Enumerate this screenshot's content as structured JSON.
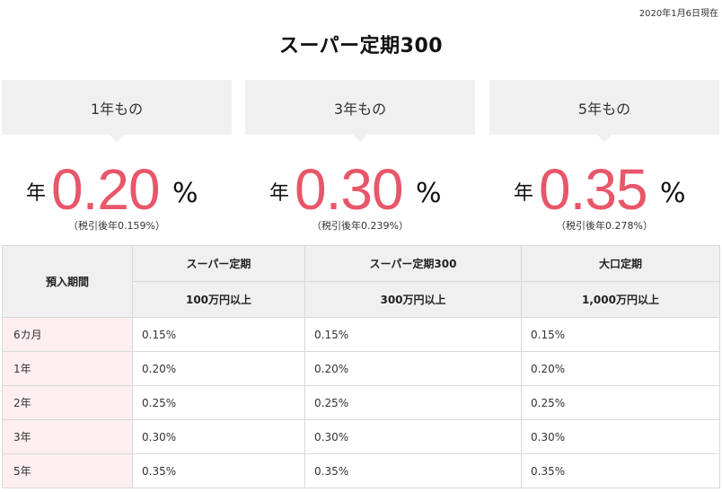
{
  "date_note": "2020年1月6日現在",
  "title": "スーパー定期300",
  "cards": [
    {
      "term": "1年もの",
      "prefix": "年",
      "rate": "0.20",
      "unit": "%",
      "after_tax": "（税引後年0.159%）"
    },
    {
      "term": "3年もの",
      "prefix": "年",
      "rate": "0.30",
      "unit": "%",
      "after_tax": "（税引後年0.239%）"
    },
    {
      "term": "5年もの",
      "prefix": "年",
      "rate": "0.35",
      "unit": "%",
      "after_tax": "（税引後年0.278%）"
    }
  ],
  "table": {
    "period_header": "預入期間",
    "columns": [
      {
        "name": "スーパー定期",
        "min": "100万円以上"
      },
      {
        "name": "スーパー定期300",
        "min": "300万円以上"
      },
      {
        "name": "大口定期",
        "min": "1,000万円以上"
      }
    ],
    "rows": [
      {
        "period": "6カ月",
        "values": [
          "0.15%",
          "0.15%",
          "0.15%"
        ]
      },
      {
        "period": "1年",
        "values": [
          "0.20%",
          "0.20%",
          "0.20%"
        ]
      },
      {
        "period": "2年",
        "values": [
          "0.25%",
          "0.25%",
          "0.25%"
        ]
      },
      {
        "period": "3年",
        "values": [
          "0.30%",
          "0.30%",
          "0.30%"
        ]
      },
      {
        "period": "5年",
        "values": [
          "0.35%",
          "0.35%",
          "0.35%"
        ]
      }
    ]
  },
  "colors": {
    "accent": "#e8566a",
    "header_bg": "#f0f0f0",
    "period_bg": "#fdeef0"
  }
}
